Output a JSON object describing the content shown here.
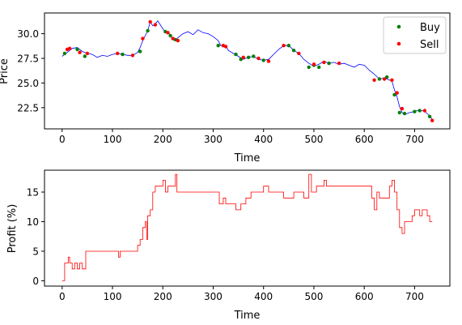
{
  "chart_data": [
    {
      "type": "line",
      "title": "",
      "xlabel": "Time",
      "ylabel": "Price",
      "xlim": [
        -35,
        770
      ],
      "ylim": [
        20.35,
        32.1
      ],
      "xticks": [
        0,
        100,
        200,
        300,
        400,
        500,
        600,
        700
      ],
      "yticks": [
        22.5,
        25.0,
        27.5,
        30.0
      ],
      "ytick_labels": [
        "22.5",
        "25.0",
        "27.5",
        "30.0"
      ],
      "grid": false,
      "legend": {
        "position": "top-right",
        "entries": [
          "Buy",
          "Sell"
        ]
      },
      "series": [
        {
          "role": "price",
          "color": "#0000ff",
          "points": [
            [
              0,
              27.7
            ],
            [
              10,
              28.1
            ],
            [
              20,
              28.5
            ],
            [
              30,
              28.6
            ],
            [
              40,
              28.2
            ],
            [
              50,
              28.0
            ],
            [
              60,
              27.9
            ],
            [
              70,
              27.6
            ],
            [
              80,
              27.8
            ],
            [
              90,
              27.7
            ],
            [
              100,
              27.9
            ],
            [
              110,
              28.0
            ],
            [
              120,
              27.9
            ],
            [
              130,
              27.8
            ],
            [
              140,
              27.8
            ],
            [
              150,
              28.1
            ],
            [
              155,
              28.6
            ],
            [
              160,
              29.3
            ],
            [
              165,
              29.8
            ],
            [
              170,
              30.3
            ],
            [
              175,
              31.2
            ],
            [
              180,
              30.8
            ],
            [
              185,
              31.0
            ],
            [
              190,
              31.3
            ],
            [
              195,
              30.9
            ],
            [
              200,
              30.5
            ],
            [
              205,
              30.1
            ],
            [
              210,
              30.2
            ],
            [
              215,
              29.8
            ],
            [
              220,
              29.4
            ],
            [
              225,
              29.3
            ],
            [
              230,
              29.6
            ],
            [
              240,
              30.0
            ],
            [
              250,
              30.2
            ],
            [
              260,
              29.9
            ],
            [
              270,
              30.4
            ],
            [
              280,
              30.1
            ],
            [
              290,
              30.0
            ],
            [
              300,
              29.7
            ],
            [
              310,
              29.3
            ],
            [
              315,
              28.8
            ],
            [
              325,
              28.8
            ],
            [
              330,
              28.3
            ],
            [
              340,
              28.0
            ],
            [
              350,
              27.7
            ],
            [
              360,
              27.4
            ],
            [
              370,
              27.6
            ],
            [
              380,
              27.7
            ],
            [
              390,
              27.4
            ],
            [
              400,
              27.3
            ],
            [
              410,
              27.4
            ],
            [
              420,
              27.9
            ],
            [
              430,
              28.4
            ],
            [
              440,
              28.8
            ],
            [
              450,
              28.8
            ],
            [
              460,
              28.3
            ],
            [
              470,
              28.0
            ],
            [
              480,
              27.4
            ],
            [
              490,
              27.0
            ],
            [
              500,
              26.7
            ],
            [
              510,
              26.9
            ],
            [
              520,
              27.2
            ],
            [
              530,
              27.0
            ],
            [
              540,
              27.1
            ],
            [
              550,
              26.9
            ],
            [
              560,
              27.0
            ],
            [
              570,
              26.8
            ],
            [
              580,
              26.6
            ],
            [
              590,
              26.9
            ],
            [
              600,
              26.8
            ],
            [
              610,
              26.3
            ],
            [
              620,
              25.9
            ],
            [
              630,
              25.4
            ],
            [
              640,
              25.5
            ],
            [
              650,
              25.3
            ],
            [
              655,
              25.2
            ],
            [
              660,
              24.3
            ],
            [
              665,
              23.6
            ],
            [
              670,
              22.6
            ],
            [
              675,
              22.0
            ],
            [
              680,
              21.8
            ],
            [
              690,
              22.0
            ],
            [
              700,
              22.1
            ],
            [
              710,
              22.3
            ],
            [
              720,
              22.1
            ],
            [
              730,
              21.7
            ],
            [
              735,
              21.3
            ]
          ]
        },
        {
          "name": "Buy",
          "color": "#008000",
          "points": [
            [
              5,
              28.0
            ],
            [
              30,
              28.4
            ],
            [
              45,
              27.7
            ],
            [
              120,
              27.9
            ],
            [
              155,
              28.2
            ],
            [
              170,
              30.3
            ],
            [
              205,
              30.2
            ],
            [
              215,
              29.8
            ],
            [
              225,
              29.4
            ],
            [
              310,
              28.8
            ],
            [
              345,
              27.9
            ],
            [
              355,
              27.4
            ],
            [
              370,
              27.6
            ],
            [
              380,
              27.7
            ],
            [
              400,
              27.3
            ],
            [
              450,
              28.8
            ],
            [
              460,
              28.3
            ],
            [
              490,
              26.6
            ],
            [
              500,
              26.8
            ],
            [
              510,
              26.6
            ],
            [
              530,
              27.0
            ],
            [
              630,
              25.4
            ],
            [
              645,
              25.6
            ],
            [
              660,
              23.8
            ],
            [
              670,
              22.0
            ],
            [
              680,
              21.9
            ],
            [
              700,
              22.1
            ],
            [
              710,
              22.2
            ],
            [
              730,
              21.6
            ]
          ]
        },
        {
          "name": "Sell",
          "color": "#ff0000",
          "points": [
            [
              10,
              28.4
            ],
            [
              15,
              28.5
            ],
            [
              35,
              28.1
            ],
            [
              50,
              28.0
            ],
            [
              110,
              28.0
            ],
            [
              140,
              27.8
            ],
            [
              160,
              29.5
            ],
            [
              175,
              31.2
            ],
            [
              185,
              30.9
            ],
            [
              210,
              30.1
            ],
            [
              220,
              29.5
            ],
            [
              230,
              29.3
            ],
            [
              320,
              28.8
            ],
            [
              325,
              28.7
            ],
            [
              360,
              27.6
            ],
            [
              390,
              27.5
            ],
            [
              410,
              27.2
            ],
            [
              440,
              28.8
            ],
            [
              470,
              28.0
            ],
            [
              500,
              26.9
            ],
            [
              520,
              27.1
            ],
            [
              550,
              27.0
            ],
            [
              620,
              25.3
            ],
            [
              640,
              25.4
            ],
            [
              655,
              25.3
            ],
            [
              665,
              24.0
            ],
            [
              675,
              22.4
            ],
            [
              720,
              22.2
            ],
            [
              735,
              21.2
            ]
          ]
        }
      ]
    },
    {
      "type": "line",
      "title": "",
      "xlabel": "Time",
      "ylabel": "Profit (%)",
      "xlim": [
        -35,
        770
      ],
      "ylim": [
        -0.9,
        18.7
      ],
      "xticks": [
        0,
        100,
        200,
        300,
        400,
        500,
        600,
        700
      ],
      "yticks": [
        0,
        5,
        10,
        15
      ],
      "grid": false,
      "series": [
        {
          "role": "profit",
          "color": "#ff0000",
          "points": [
            [
              0,
              0
            ],
            [
              5,
              0
            ],
            [
              5,
              3
            ],
            [
              12,
              3
            ],
            [
              12,
              4
            ],
            [
              15,
              4
            ],
            [
              15,
              3
            ],
            [
              20,
              3
            ],
            [
              20,
              2
            ],
            [
              25,
              2
            ],
            [
              25,
              3
            ],
            [
              30,
              3
            ],
            [
              30,
              2
            ],
            [
              35,
              2
            ],
            [
              35,
              3
            ],
            [
              40,
              3
            ],
            [
              40,
              2
            ],
            [
              47,
              2
            ],
            [
              47,
              5
            ],
            [
              70,
              5
            ],
            [
              90,
              5
            ],
            [
              112,
              5
            ],
            [
              112,
              4
            ],
            [
              115,
              4
            ],
            [
              115,
              5
            ],
            [
              150,
              5
            ],
            [
              150,
              6
            ],
            [
              155,
              6
            ],
            [
              155,
              7
            ],
            [
              160,
              7
            ],
            [
              160,
              9
            ],
            [
              165,
              9
            ],
            [
              165,
              10
            ],
            [
              168,
              10
            ],
            [
              168,
              7
            ],
            [
              170,
              7
            ],
            [
              170,
              11
            ],
            [
              175,
              11
            ],
            [
              175,
              12
            ],
            [
              180,
              12
            ],
            [
              180,
              15
            ],
            [
              185,
              15
            ],
            [
              185,
              16
            ],
            [
              200,
              16
            ],
            [
              200,
              17
            ],
            [
              205,
              17
            ],
            [
              205,
              15
            ],
            [
              210,
              15
            ],
            [
              210,
              16
            ],
            [
              225,
              16
            ],
            [
              225,
              18
            ],
            [
              228,
              18
            ],
            [
              228,
              15
            ],
            [
              300,
              15
            ],
            [
              312,
              15
            ],
            [
              312,
              13
            ],
            [
              320,
              13
            ],
            [
              320,
              14
            ],
            [
              325,
              14
            ],
            [
              325,
              13
            ],
            [
              345,
              13
            ],
            [
              345,
              12
            ],
            [
              355,
              12
            ],
            [
              355,
              13
            ],
            [
              365,
              13
            ],
            [
              365,
              14
            ],
            [
              375,
              14
            ],
            [
              375,
              15
            ],
            [
              400,
              15
            ],
            [
              400,
              16
            ],
            [
              410,
              16
            ],
            [
              410,
              15
            ],
            [
              440,
              15
            ],
            [
              440,
              14
            ],
            [
              460,
              14
            ],
            [
              460,
              15
            ],
            [
              480,
              15
            ],
            [
              480,
              14
            ],
            [
              490,
              14
            ],
            [
              490,
              18
            ],
            [
              495,
              18
            ],
            [
              495,
              15
            ],
            [
              505,
              15
            ],
            [
              505,
              16
            ],
            [
              520,
              16
            ],
            [
              520,
              17
            ],
            [
              525,
              17
            ],
            [
              525,
              16
            ],
            [
              615,
              16
            ],
            [
              615,
              14
            ],
            [
              620,
              14
            ],
            [
              620,
              12
            ],
            [
              625,
              12
            ],
            [
              625,
              15
            ],
            [
              630,
              15
            ],
            [
              630,
              14
            ],
            [
              650,
              14
            ],
            [
              650,
              16
            ],
            [
              655,
              16
            ],
            [
              655,
              17
            ],
            [
              660,
              17
            ],
            [
              660,
              15
            ],
            [
              665,
              15
            ],
            [
              665,
              12
            ],
            [
              670,
              12
            ],
            [
              670,
              9
            ],
            [
              675,
              9
            ],
            [
              675,
              8
            ],
            [
              680,
              8
            ],
            [
              680,
              10
            ],
            [
              695,
              10
            ],
            [
              695,
              11
            ],
            [
              700,
              11
            ],
            [
              700,
              12
            ],
            [
              710,
              12
            ],
            [
              710,
              11
            ],
            [
              715,
              11
            ],
            [
              715,
              12
            ],
            [
              725,
              12
            ],
            [
              725,
              11
            ],
            [
              730,
              11
            ],
            [
              730,
              10
            ],
            [
              735,
              10
            ]
          ]
        }
      ]
    }
  ]
}
